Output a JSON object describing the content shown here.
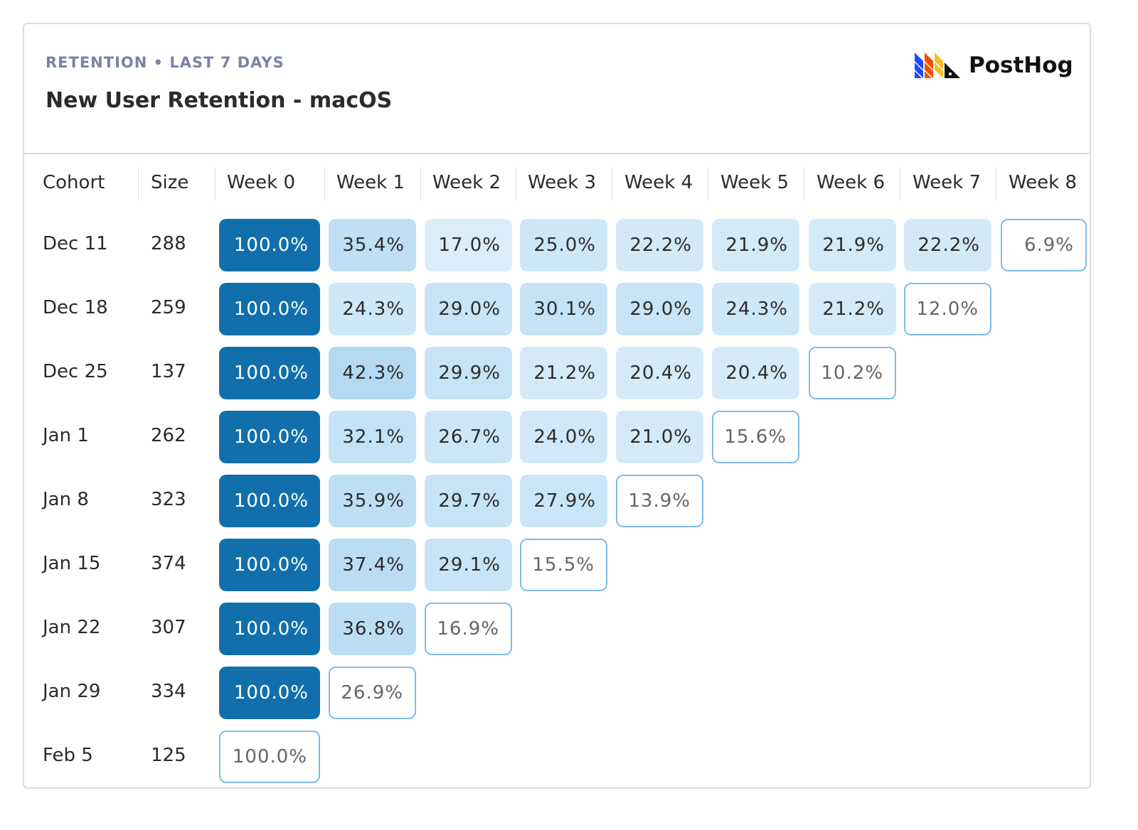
{
  "header": {
    "subtitle": "RETENTION • LAST 7 DAYS",
    "title": "New User Retention - macOS",
    "logo_text": "PostHog"
  },
  "colors": {
    "full": "#1170ac",
    "border": "#7dbde8"
  },
  "columns": [
    "Cohort",
    "Size",
    "Week 0",
    "Week 1",
    "Week 2",
    "Week 3",
    "Week 4",
    "Week 5",
    "Week 6",
    "Week 7",
    "Week 8"
  ],
  "rows": [
    {
      "cohort": "Dec 11",
      "size": "288",
      "values": [
        "100.0%",
        "35.4%",
        "17.0%",
        "25.0%",
        "22.2%",
        "21.9%",
        "21.9%",
        "22.2%",
        "6.9%"
      ]
    },
    {
      "cohort": "Dec 18",
      "size": "259",
      "values": [
        "100.0%",
        "24.3%",
        "29.0%",
        "30.1%",
        "29.0%",
        "24.3%",
        "21.2%",
        "12.0%"
      ]
    },
    {
      "cohort": "Dec 25",
      "size": "137",
      "values": [
        "100.0%",
        "42.3%",
        "29.9%",
        "21.2%",
        "20.4%",
        "20.4%",
        "10.2%"
      ]
    },
    {
      "cohort": "Jan 1",
      "size": "262",
      "values": [
        "100.0%",
        "32.1%",
        "26.7%",
        "24.0%",
        "21.0%",
        "15.6%"
      ]
    },
    {
      "cohort": "Jan 8",
      "size": "323",
      "values": [
        "100.0%",
        "35.9%",
        "29.7%",
        "27.9%",
        "13.9%"
      ]
    },
    {
      "cohort": "Jan 15",
      "size": "374",
      "values": [
        "100.0%",
        "37.4%",
        "29.1%",
        "15.5%"
      ]
    },
    {
      "cohort": "Jan 22",
      "size": "307",
      "values": [
        "100.0%",
        "36.8%",
        "16.9%"
      ]
    },
    {
      "cohort": "Jan 29",
      "size": "334",
      "values": [
        "100.0%",
        "26.9%"
      ]
    },
    {
      "cohort": "Feb 5",
      "size": "125",
      "values": [
        "100.0%"
      ]
    }
  ]
}
